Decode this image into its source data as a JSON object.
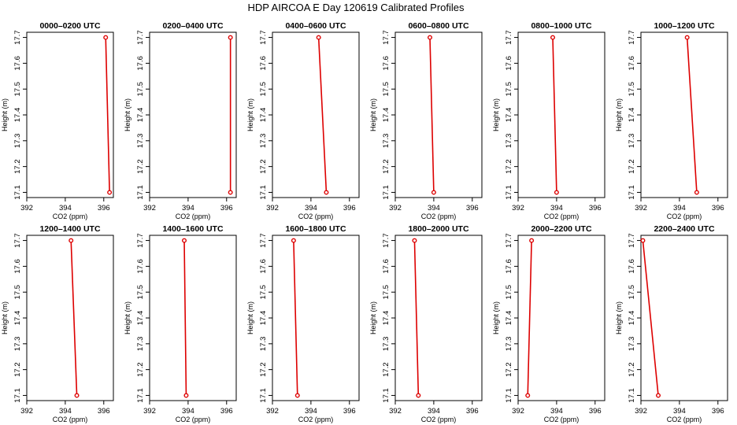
{
  "figure": {
    "title": "HDP AIRCOA E  Day 120619  Calibrated Profiles"
  },
  "chart_data": [
    {
      "type": "line",
      "title": "0000–0200 UTC",
      "xlabel": "CO2 (ppm)",
      "ylabel": "Height (m)",
      "xlim": [
        392,
        396.5
      ],
      "ylim": [
        17.08,
        17.72
      ],
      "xticks": [
        392,
        394,
        396
      ],
      "yticks": [
        17.1,
        17.2,
        17.3,
        17.4,
        17.5,
        17.6,
        17.7
      ],
      "series": [
        {
          "x": [
            396.1,
            396.3
          ],
          "y": [
            17.7,
            17.1
          ]
        }
      ]
    },
    {
      "type": "line",
      "title": "0200–0400 UTC",
      "xlabel": "CO2 (ppm)",
      "ylabel": "Height (m)",
      "xlim": [
        392,
        396.5
      ],
      "ylim": [
        17.08,
        17.72
      ],
      "xticks": [
        392,
        394,
        396
      ],
      "yticks": [
        17.1,
        17.2,
        17.3,
        17.4,
        17.5,
        17.6,
        17.7
      ],
      "series": [
        {
          "x": [
            396.2,
            396.2
          ],
          "y": [
            17.7,
            17.1
          ]
        }
      ]
    },
    {
      "type": "line",
      "title": "0400–0600 UTC",
      "xlabel": "CO2 (ppm)",
      "ylabel": "Height (m)",
      "xlim": [
        392,
        396.5
      ],
      "ylim": [
        17.08,
        17.72
      ],
      "xticks": [
        392,
        394,
        396
      ],
      "yticks": [
        17.1,
        17.2,
        17.3,
        17.4,
        17.5,
        17.6,
        17.7
      ],
      "series": [
        {
          "x": [
            394.4,
            394.8
          ],
          "y": [
            17.7,
            17.1
          ]
        }
      ]
    },
    {
      "type": "line",
      "title": "0600–0800 UTC",
      "xlabel": "CO2 (ppm)",
      "ylabel": "Height (m)",
      "xlim": [
        392,
        396.5
      ],
      "ylim": [
        17.08,
        17.72
      ],
      "xticks": [
        392,
        394,
        396
      ],
      "yticks": [
        17.1,
        17.2,
        17.3,
        17.4,
        17.5,
        17.6,
        17.7
      ],
      "series": [
        {
          "x": [
            393.8,
            394.0
          ],
          "y": [
            17.7,
            17.1
          ]
        }
      ]
    },
    {
      "type": "line",
      "title": "0800–1000 UTC",
      "xlabel": "CO2 (ppm)",
      "ylabel": "Height (m)",
      "xlim": [
        392,
        396.5
      ],
      "ylim": [
        17.08,
        17.72
      ],
      "xticks": [
        392,
        394,
        396
      ],
      "yticks": [
        17.1,
        17.2,
        17.3,
        17.4,
        17.5,
        17.6,
        17.7
      ],
      "series": [
        {
          "x": [
            393.8,
            394.0
          ],
          "y": [
            17.7,
            17.1
          ]
        }
      ]
    },
    {
      "type": "line",
      "title": "1000–1200 UTC",
      "xlabel": "CO2 (ppm)",
      "ylabel": "Height (m)",
      "xlim": [
        392,
        396.5
      ],
      "ylim": [
        17.08,
        17.72
      ],
      "xticks": [
        392,
        394,
        396
      ],
      "yticks": [
        17.1,
        17.2,
        17.3,
        17.4,
        17.5,
        17.6,
        17.7
      ],
      "series": [
        {
          "x": [
            394.4,
            394.9
          ],
          "y": [
            17.7,
            17.1
          ]
        }
      ]
    },
    {
      "type": "line",
      "title": "1200–1400 UTC",
      "xlabel": "CO2 (ppm)",
      "ylabel": "Height (m)",
      "xlim": [
        392,
        396.5
      ],
      "ylim": [
        17.08,
        17.72
      ],
      "xticks": [
        392,
        394,
        396
      ],
      "yticks": [
        17.1,
        17.2,
        17.3,
        17.4,
        17.5,
        17.6,
        17.7
      ],
      "series": [
        {
          "x": [
            394.3,
            394.6
          ],
          "y": [
            17.7,
            17.1
          ]
        }
      ]
    },
    {
      "type": "line",
      "title": "1400–1600 UTC",
      "xlabel": "CO2 (ppm)",
      "ylabel": "Height (m)",
      "xlim": [
        392,
        396.5
      ],
      "ylim": [
        17.08,
        17.72
      ],
      "xticks": [
        392,
        394,
        396
      ],
      "yticks": [
        17.1,
        17.2,
        17.3,
        17.4,
        17.5,
        17.6,
        17.7
      ],
      "series": [
        {
          "x": [
            393.8,
            393.9
          ],
          "y": [
            17.7,
            17.1
          ]
        }
      ]
    },
    {
      "type": "line",
      "title": "1600–1800 UTC",
      "xlabel": "CO2 (ppm)",
      "ylabel": "Height (m)",
      "xlim": [
        392,
        396.5
      ],
      "ylim": [
        17.08,
        17.72
      ],
      "xticks": [
        392,
        394,
        396
      ],
      "yticks": [
        17.1,
        17.2,
        17.3,
        17.4,
        17.5,
        17.6,
        17.7
      ],
      "series": [
        {
          "x": [
            393.1,
            393.3
          ],
          "y": [
            17.7,
            17.1
          ]
        }
      ]
    },
    {
      "type": "line",
      "title": "1800–2000 UTC",
      "xlabel": "CO2 (ppm)",
      "ylabel": "Height (m)",
      "xlim": [
        392,
        396.5
      ],
      "ylim": [
        17.08,
        17.72
      ],
      "xticks": [
        392,
        394,
        396
      ],
      "yticks": [
        17.1,
        17.2,
        17.3,
        17.4,
        17.5,
        17.6,
        17.7
      ],
      "series": [
        {
          "x": [
            393.0,
            393.2
          ],
          "y": [
            17.7,
            17.1
          ]
        }
      ]
    },
    {
      "type": "line",
      "title": "2000–2200 UTC",
      "xlabel": "CO2 (ppm)",
      "ylabel": "Height (m)",
      "xlim": [
        392,
        396.5
      ],
      "ylim": [
        17.08,
        17.72
      ],
      "xticks": [
        392,
        394,
        396
      ],
      "yticks": [
        17.1,
        17.2,
        17.3,
        17.4,
        17.5,
        17.6,
        17.7
      ],
      "series": [
        {
          "x": [
            392.7,
            392.5
          ],
          "y": [
            17.7,
            17.1
          ]
        }
      ]
    },
    {
      "type": "line",
      "title": "2200–2400 UTC",
      "xlabel": "CO2 (ppm)",
      "ylabel": "Height (m)",
      "xlim": [
        392,
        396.5
      ],
      "ylim": [
        17.08,
        17.72
      ],
      "xticks": [
        392,
        394,
        396
      ],
      "yticks": [
        17.1,
        17.2,
        17.3,
        17.4,
        17.5,
        17.6,
        17.7
      ],
      "series": [
        {
          "x": [
            392.1,
            392.9
          ],
          "y": [
            17.7,
            17.1
          ]
        }
      ]
    }
  ],
  "colors": {
    "series": "#dd0000",
    "axis": "#000000",
    "background": "#ffffff"
  }
}
